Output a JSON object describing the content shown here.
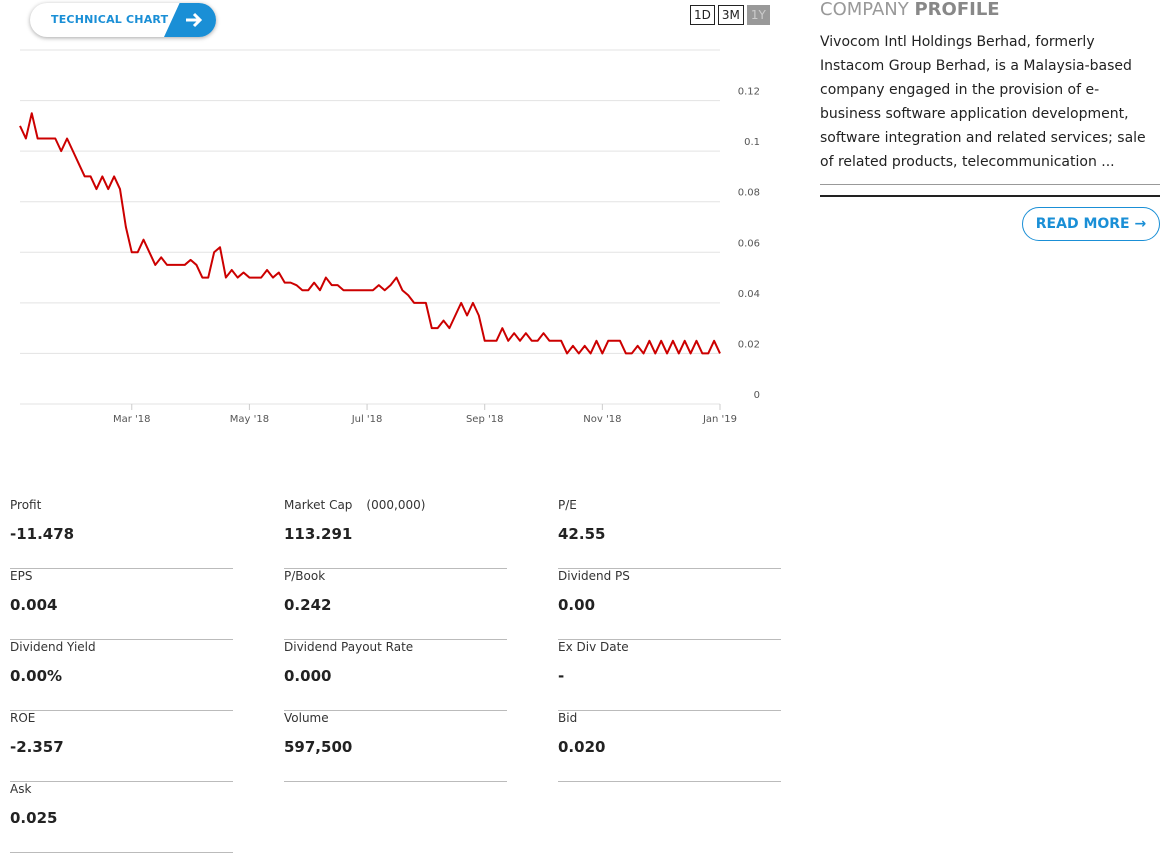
{
  "toolbar": {
    "technical_chart": "TECHNICAL CHART",
    "ranges": [
      "1D",
      "3M",
      "1Y"
    ]
  },
  "chart_data": {
    "type": "line",
    "x": [
      0.1,
      0.2,
      0.3,
      0.4,
      0.5,
      0.6,
      0.7,
      0.8,
      0.9,
      1.0,
      1.1,
      1.2,
      1.3,
      1.4,
      1.5,
      1.6,
      1.7,
      1.8,
      1.9,
      2.0,
      2.1,
      2.2,
      2.3,
      2.4,
      2.5,
      2.6,
      2.7,
      2.8,
      2.9,
      3.0,
      3.1,
      3.2,
      3.3,
      3.4,
      3.5,
      3.6,
      3.7,
      3.8,
      3.9,
      4.0,
      4.1,
      4.2,
      4.3,
      4.4,
      4.5,
      4.6,
      4.7,
      4.8,
      4.9,
      5.0,
      5.1,
      5.2,
      5.3,
      5.4,
      5.5,
      5.6,
      5.7,
      5.8,
      5.9,
      6.0,
      6.1,
      6.2,
      6.3,
      6.4,
      6.5,
      6.6,
      6.7,
      6.8,
      6.9,
      7.0,
      7.1,
      7.2,
      7.3,
      7.4,
      7.5,
      7.6,
      7.7,
      7.8,
      7.9,
      8.0,
      8.1,
      8.2,
      8.3,
      8.4,
      8.5,
      8.6,
      8.7,
      8.8,
      8.9,
      9.0,
      9.1,
      9.2,
      9.3,
      9.4,
      9.5,
      9.6,
      9.7,
      9.8,
      9.9,
      10.0,
      10.1,
      10.2,
      10.3,
      10.4,
      10.5,
      10.6,
      10.7,
      10.8,
      10.9,
      11.0,
      11.1,
      11.2,
      11.3,
      11.4,
      11.5,
      11.6,
      11.7,
      11.8,
      11.9,
      12.0
    ],
    "series": [
      {
        "color": "#cc0000",
        "values": [
          0.11,
          0.105,
          0.115,
          0.105,
          0.105,
          0.105,
          0.105,
          0.1,
          0.105,
          0.1,
          0.095,
          0.09,
          0.09,
          0.085,
          0.09,
          0.085,
          0.09,
          0.085,
          0.07,
          0.06,
          0.06,
          0.065,
          0.06,
          0.055,
          0.058,
          0.055,
          0.055,
          0.055,
          0.055,
          0.057,
          0.055,
          0.05,
          0.05,
          0.06,
          0.062,
          0.05,
          0.053,
          0.05,
          0.052,
          0.05,
          0.05,
          0.05,
          0.053,
          0.05,
          0.052,
          0.048,
          0.048,
          0.047,
          0.045,
          0.045,
          0.048,
          0.045,
          0.05,
          0.047,
          0.047,
          0.045,
          0.045,
          0.045,
          0.045,
          0.045,
          0.045,
          0.047,
          0.045,
          0.047,
          0.05,
          0.045,
          0.043,
          0.04,
          0.04,
          0.04,
          0.03,
          0.03,
          0.033,
          0.03,
          0.035,
          0.04,
          0.035,
          0.04,
          0.035,
          0.025,
          0.025,
          0.025,
          0.03,
          0.025,
          0.028,
          0.025,
          0.028,
          0.025,
          0.025,
          0.028,
          0.025,
          0.025,
          0.025,
          0.02,
          0.023,
          0.02,
          0.023,
          0.02,
          0.025,
          0.02,
          0.025,
          0.025,
          0.025,
          0.02,
          0.02,
          0.023,
          0.02,
          0.025,
          0.02,
          0.025,
          0.02,
          0.025,
          0.02,
          0.025,
          0.02,
          0.025,
          0.02,
          0.02,
          0.025,
          0.02
        ]
      }
    ],
    "xlim": [
      0.1,
      12.0
    ],
    "xticks": [
      {
        "value": 2,
        "label": "Mar '18"
      },
      {
        "value": 4,
        "label": "May '18"
      },
      {
        "value": 6,
        "label": "Jul '18"
      },
      {
        "value": 8,
        "label": "Sep '18"
      },
      {
        "value": 10,
        "label": "Nov '18"
      },
      {
        "value": 12,
        "label": "Jan '19"
      }
    ],
    "ylim": [
      0,
      0.14
    ],
    "yticks": [
      0,
      0.02,
      0.04,
      0.06,
      0.08,
      0.1,
      0.12
    ],
    "grid": true
  },
  "profile": {
    "title_light": "COMPANY",
    "title_bold": "PROFILE",
    "text": "Vivocom Intl Holdings Berhad, formerly Instacom Group Berhad, is a Malaysia-based company engaged in the provision of e-business software application development, software integration and related services; sale of related products, telecommunication ...",
    "read_more": "READ MORE"
  },
  "stats": [
    {
      "label": "Profit",
      "value": "-11.478"
    },
    {
      "label": "Market Cap",
      "unit": "(000,000)",
      "value": "113.291"
    },
    {
      "label": "P/E",
      "value": "42.55"
    },
    {
      "label": "EPS",
      "value": "0.004"
    },
    {
      "label": "P/Book",
      "value": "0.242"
    },
    {
      "label": "Dividend PS",
      "value": "0.00"
    },
    {
      "label": "Dividend Yield",
      "value": "0.00%"
    },
    {
      "label": "Dividend Payout Rate",
      "value": "0.000"
    },
    {
      "label": "Ex Div Date",
      "value": "-"
    },
    {
      "label": "ROE",
      "value": "-2.357"
    },
    {
      "label": "Volume",
      "value": "597,500"
    },
    {
      "label": "Bid",
      "value": "0.020"
    },
    {
      "label": "Ask",
      "value": "0.025"
    }
  ]
}
